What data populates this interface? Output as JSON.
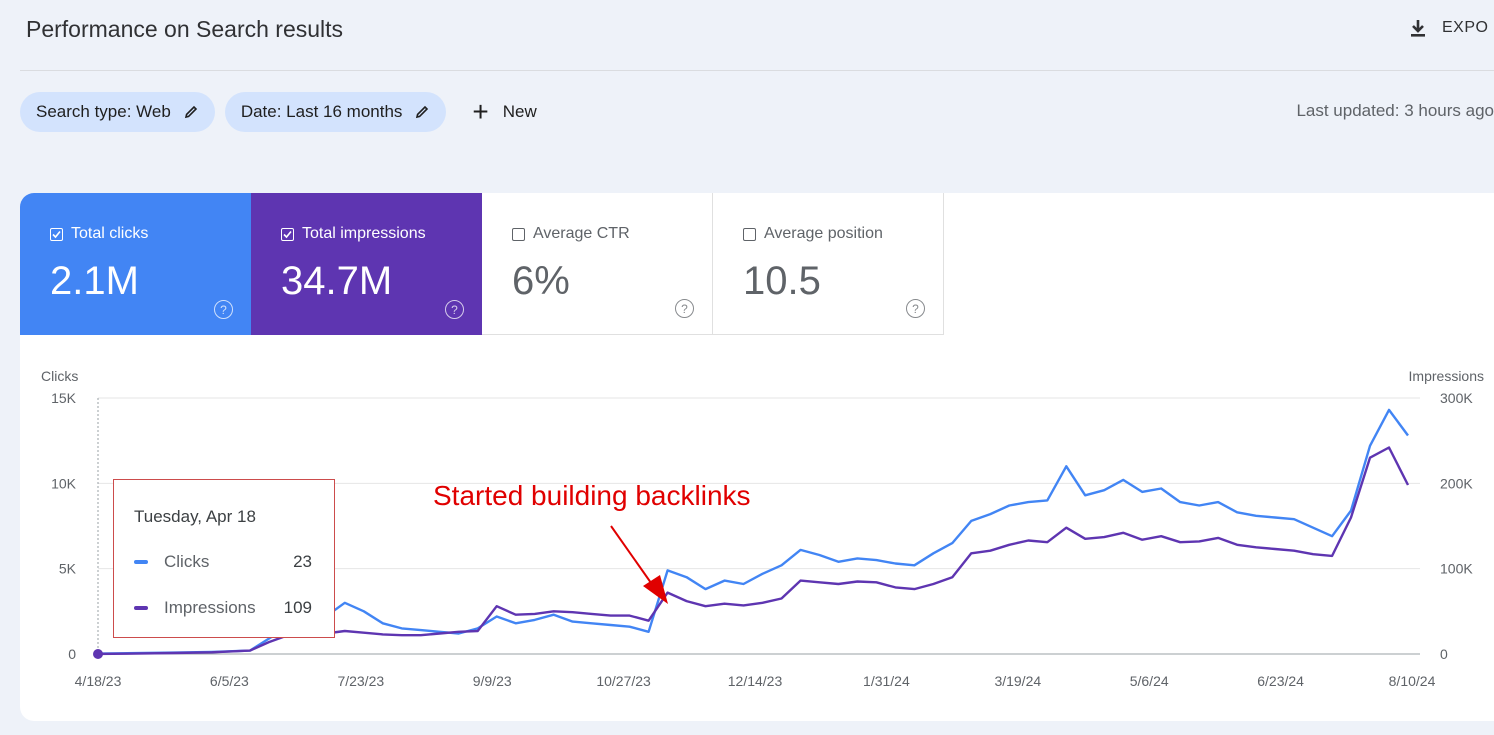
{
  "header": {
    "title": "Performance on Search results",
    "export_label": "EXPO",
    "export_icon": "download-icon"
  },
  "filters": {
    "search_type": "Search type: Web",
    "date": "Date: Last 16 months",
    "new_label": "New",
    "last_updated": "Last updated: 3 hours ago"
  },
  "metrics": [
    {
      "label": "Total clicks",
      "value": "2.1M",
      "checked": true,
      "color": "#4285f4"
    },
    {
      "label": "Total impressions",
      "value": "34.7M",
      "checked": true,
      "color": "#5e35b1"
    },
    {
      "label": "Average CTR",
      "value": "6%",
      "checked": false
    },
    {
      "label": "Average position",
      "value": "10.5",
      "checked": false
    }
  ],
  "tooltip": {
    "date": "Tuesday, Apr 18",
    "clicks_label": "Clicks",
    "clicks_value": "23",
    "impressions_label": "Impressions",
    "impressions_value": "109"
  },
  "annotation": "Started building backlinks",
  "chart_data": {
    "type": "line",
    "x": [
      "4/18/23",
      "5/2/23",
      "5/16/23",
      "5/30/23",
      "6/13/23",
      "6/20/23",
      "6/27/23",
      "7/4/23",
      "7/11/23",
      "7/18/23",
      "7/25/23",
      "8/1/23",
      "8/8/23",
      "8/15/23",
      "8/22/23",
      "8/29/23",
      "9/5/23",
      "9/12/23",
      "9/19/23",
      "9/26/23",
      "10/3/23",
      "10/10/23",
      "10/17/23",
      "10/24/23",
      "10/31/23",
      "11/7/23",
      "11/14/23",
      "11/21/23",
      "11/28/23",
      "12/5/23",
      "12/12/23",
      "12/19/23",
      "12/26/23",
      "1/2/24",
      "1/9/24",
      "1/16/24",
      "1/23/24",
      "1/30/24",
      "2/6/24",
      "2/13/24",
      "2/20/24",
      "2/27/24",
      "3/5/24",
      "3/12/24",
      "3/19/24",
      "3/26/24",
      "4/2/24",
      "4/9/24",
      "4/16/24",
      "4/23/24",
      "4/30/24",
      "5/7/24",
      "5/14/24",
      "5/21/24",
      "5/28/24",
      "6/4/24",
      "6/11/24",
      "6/18/24",
      "6/25/24",
      "7/2/24",
      "7/9/24",
      "7/16/24",
      "7/23/24",
      "7/30/24",
      "8/6/24",
      "8/13/24"
    ],
    "xticks": [
      "4/18/23",
      "6/5/23",
      "7/23/23",
      "9/9/23",
      "10/27/23",
      "12/14/23",
      "1/31/24",
      "3/19/24",
      "5/6/24",
      "6/23/24",
      "8/10/24"
    ],
    "series": [
      {
        "name": "Clicks",
        "axis": "left",
        "color": "#4285f4",
        "values": [
          23,
          50,
          80,
          120,
          200,
          900,
          1600,
          2800,
          2200,
          3000,
          2500,
          1800,
          1500,
          1400,
          1300,
          1200,
          1500,
          2200,
          1800,
          2000,
          2300,
          1900,
          1800,
          1700,
          1600,
          1300,
          4900,
          4500,
          3800,
          4300,
          4100,
          4700,
          5200,
          6100,
          5800,
          5400,
          5600,
          5500,
          5300,
          5200,
          5900,
          6500,
          7800,
          8200,
          8700,
          8900,
          9000,
          11000,
          9300,
          9600,
          10200,
          9500,
          9700,
          8900,
          8700,
          8900,
          8300,
          8100,
          8000,
          7900,
          7400,
          6900,
          8400,
          12200,
          14300,
          12800
        ]
      },
      {
        "name": "Impressions",
        "axis": "right",
        "color": "#5e35b1",
        "values": [
          109,
          500,
          1200,
          2000,
          4000,
          14000,
          22000,
          30000,
          24000,
          27000,
          25000,
          23000,
          22000,
          22000,
          24000,
          26000,
          27000,
          56000,
          46000,
          47000,
          50000,
          49000,
          47000,
          45000,
          45000,
          39000,
          72000,
          62000,
          56000,
          59000,
          57000,
          60000,
          65000,
          86000,
          84000,
          82000,
          85000,
          84000,
          78000,
          76000,
          82000,
          90000,
          118000,
          121000,
          128000,
          133000,
          131000,
          148000,
          135000,
          137000,
          142000,
          134000,
          138000,
          131000,
          132000,
          136000,
          128000,
          125000,
          123000,
          121000,
          117000,
          115000,
          160000,
          230000,
          242000,
          198000
        ]
      }
    ],
    "ylabel_left": "Clicks",
    "ylabel_right": "Impressions",
    "yticks_left": [
      "0",
      "5K",
      "10K",
      "15K"
    ],
    "yticks_right": [
      "0",
      "100K",
      "200K",
      "300K"
    ],
    "ylim_left": [
      0,
      15000
    ],
    "ylim_right": [
      0,
      300000
    ],
    "grid": true
  }
}
